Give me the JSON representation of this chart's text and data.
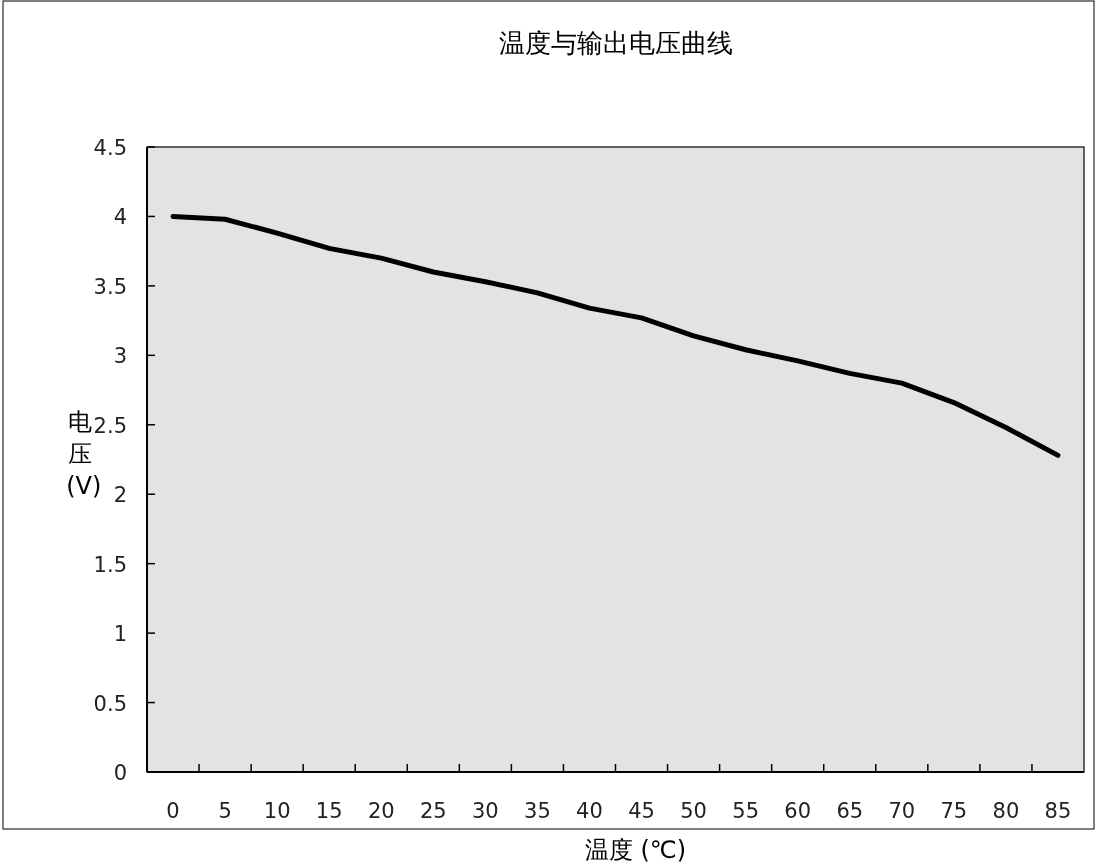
{
  "chart_data": {
    "type": "line",
    "title": "温度与输出电压曲线",
    "xlabel": "温度 (℃)",
    "ylabel": "电压 (V)",
    "categories": [
      "0",
      "5",
      "10",
      "15",
      "20",
      "25",
      "30",
      "35",
      "40",
      "45",
      "50",
      "55",
      "60",
      "65",
      "70",
      "75",
      "80",
      "85"
    ],
    "series": [
      {
        "color": "#000000",
        "values": [
          4.0,
          3.98,
          3.88,
          3.77,
          3.7,
          3.6,
          3.53,
          3.45,
          3.34,
          3.27,
          3.14,
          3.04,
          2.96,
          2.87,
          2.8,
          2.66,
          2.48,
          2.28
        ]
      }
    ],
    "ylim": [
      0,
      4.5
    ],
    "yticks": [
      0,
      0.5,
      1,
      1.5,
      2,
      2.5,
      3,
      3.5,
      4,
      4.5
    ]
  }
}
